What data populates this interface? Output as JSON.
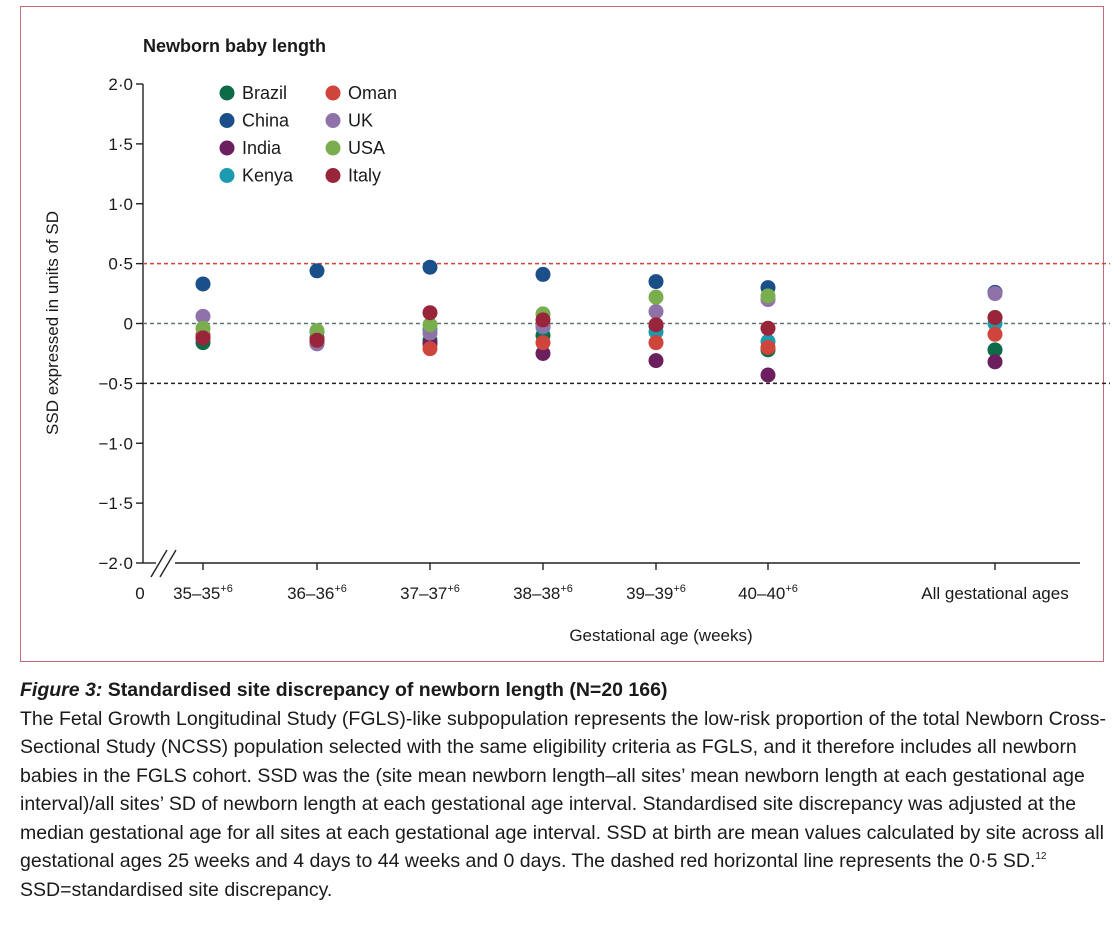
{
  "chart_data": {
    "type": "scatter",
    "title": "Newborn baby length",
    "ylabel": "SSD expressed in units of SD",
    "xlabel": "Gestational age (weeks)",
    "ylim": [
      -2.0,
      2.0
    ],
    "y_ticks": [
      "2·0",
      "1·5",
      "1·0",
      "0·5",
      "0",
      "−0·5",
      "−1·0",
      "−1·5",
      "−2·0"
    ],
    "y_tick_values": [
      2.0,
      1.5,
      1.0,
      0.5,
      0.0,
      -0.5,
      -1.0,
      -1.5,
      -2.0
    ],
    "x_origin_label": "0",
    "categories": [
      {
        "base": "35–35",
        "sup": "+6"
      },
      {
        "base": "36–36",
        "sup": "+6"
      },
      {
        "base": "37–37",
        "sup": "+6"
      },
      {
        "base": "38–38",
        "sup": "+6"
      },
      {
        "base": "39–39",
        "sup": "+6"
      },
      {
        "base": "40–40",
        "sup": "+6"
      },
      {
        "base": "All gestational ages",
        "sup": ""
      }
    ],
    "reference_lines": [
      {
        "value": 0.5,
        "color": "#d0453b"
      },
      {
        "value": 0.0,
        "color": "#5b7372"
      },
      {
        "value": -0.5,
        "color": "#222222"
      }
    ],
    "legend_placement": "top-left",
    "series": [
      {
        "name": "Brazil",
        "color": "#0e6b47",
        "values": [
          -0.16,
          -0.12,
          -0.14,
          -0.1,
          -0.02,
          -0.22,
          -0.22
        ]
      },
      {
        "name": "China",
        "color": "#1b4f8a",
        "values": [
          0.33,
          0.44,
          0.47,
          0.41,
          0.35,
          0.3,
          0.26
        ]
      },
      {
        "name": "India",
        "color": "#6b1f5e",
        "values": [
          -0.12,
          -0.16,
          -0.17,
          -0.25,
          -0.31,
          -0.43,
          -0.32
        ]
      },
      {
        "name": "Kenya",
        "color": "#1b9ab0",
        "values": [
          -0.1,
          -0.07,
          -0.05,
          -0.03,
          -0.07,
          -0.15,
          0.0
        ]
      },
      {
        "name": "Oman",
        "color": "#d0453b",
        "values": [
          -0.1,
          -0.13,
          -0.21,
          -0.16,
          -0.16,
          -0.2,
          -0.09
        ]
      },
      {
        "name": "UK",
        "color": "#8f72a8",
        "values": [
          0.06,
          -0.17,
          -0.08,
          -0.02,
          0.1,
          0.2,
          0.25
        ]
      },
      {
        "name": "USA",
        "color": "#7aad4e",
        "values": [
          -0.04,
          -0.06,
          -0.01,
          0.08,
          0.22,
          0.23,
          0.05
        ]
      },
      {
        "name": "Italy",
        "color": "#98253a",
        "values": [
          -0.12,
          -0.14,
          0.09,
          0.03,
          -0.01,
          -0.04,
          0.05
        ]
      }
    ]
  },
  "caption": {
    "figure_label": "Figure 3:",
    "figure_title": " Standardised site discrepancy of newborn length (N=20 166)",
    "body_text": "The Fetal Growth Longitudinal Study (FGLS)-like subpopulation represents the low-risk proportion of the total Newborn Cross-Sectional Study (NCSS) population selected with the same eligibility criteria as FGLS, and it therefore includes all newborn babies in the FGLS cohort. SSD was the (site mean newborn length–all sites’ mean newborn length at each gestational age interval)/all sites’ SD of newborn length at each gestational age interval. Standardised site discrepancy was adjusted at the median gestational age for all sites at each gestational age interval. SSD at birth are mean values calculated by site across all gestational ages 25 weeks and 4 days to 44 weeks and 0 days. The dashed red horizontal line represents the 0·5 SD.",
    "ref_sup": "12",
    "tail_text": " SSD=standardised site discrepancy."
  }
}
